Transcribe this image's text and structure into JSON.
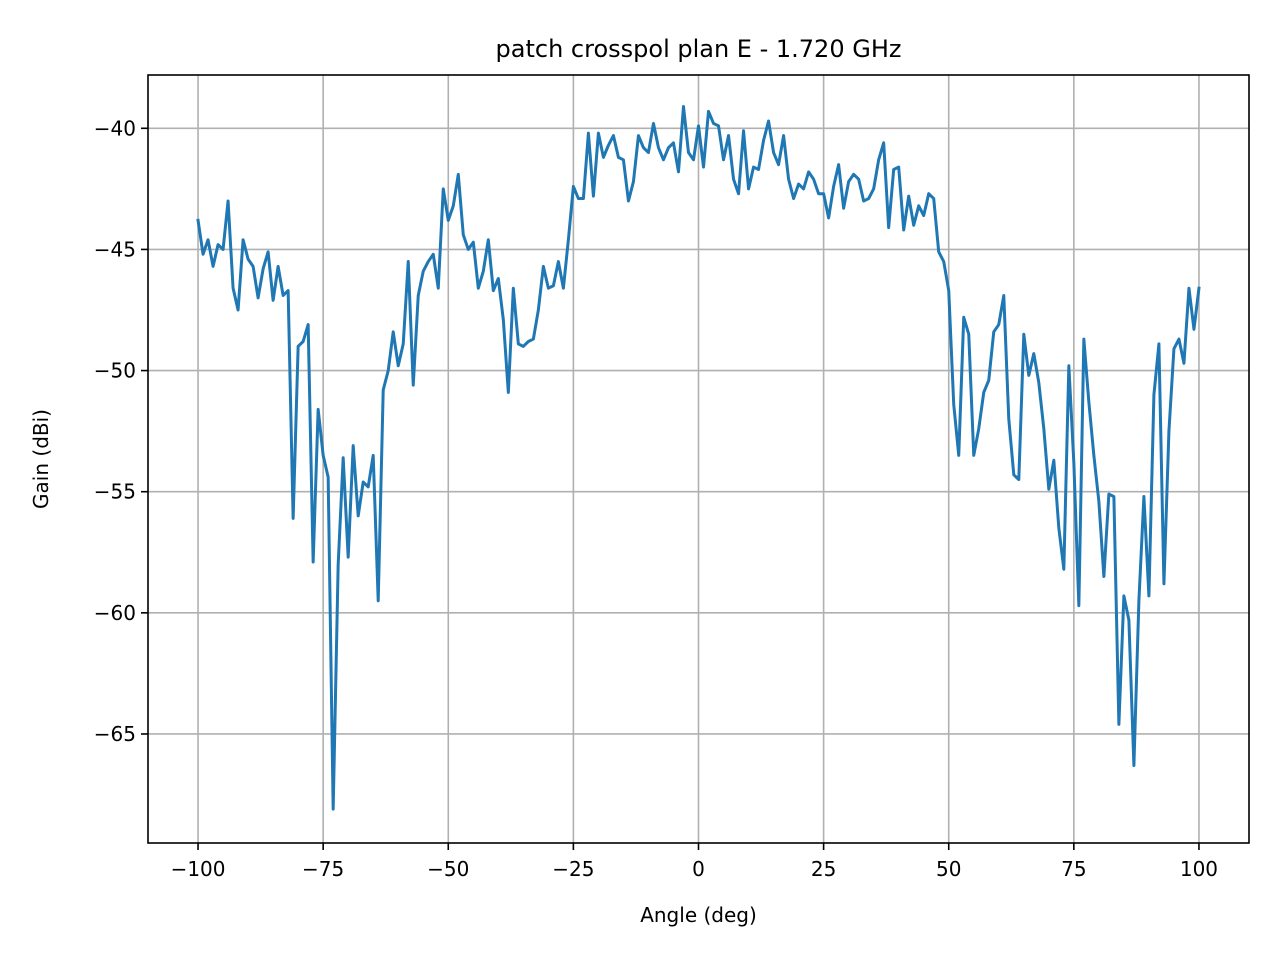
{
  "chart_data": {
    "type": "line",
    "title": "patch crosspol plan E - 1.720 GHz",
    "xlabel": "Angle (deg)",
    "ylabel": "Gain (dBi)",
    "xlim": [
      -110,
      110
    ],
    "ylim": [
      -69.5,
      -37.8
    ],
    "xticks": [
      -100,
      -75,
      -50,
      -25,
      0,
      25,
      50,
      75,
      100
    ],
    "yticks": [
      -65,
      -60,
      -55,
      -50,
      -45,
      -40
    ],
    "xtick_labels": [
      "−100",
      "−75",
      "−50",
      "−25",
      "0",
      "25",
      "50",
      "75",
      "100"
    ],
    "ytick_labels": [
      "−65",
      "−60",
      "−55",
      "−50",
      "−45",
      "−40"
    ],
    "grid": true,
    "line_color": "#1f77b4",
    "series": [
      {
        "x": [
          -100,
          -99,
          -98,
          -97,
          -96,
          -95,
          -94,
          -93,
          -92,
          -91,
          -90,
          -89,
          -88,
          -87,
          -86,
          -85,
          -84,
          -83,
          -82,
          -81,
          -80,
          -79,
          -78,
          -77,
          -76,
          -75,
          -74,
          -73,
          -72,
          -71,
          -70,
          -69,
          -68,
          -67,
          -66,
          -65,
          -64,
          -63,
          -62,
          -61,
          -60,
          -59,
          -58,
          -57,
          -56,
          -55,
          -54,
          -53,
          -52,
          -51,
          -50,
          -49,
          -48,
          -47,
          -46,
          -45,
          -44,
          -43,
          -42,
          -41,
          -40,
          -39,
          -38,
          -37,
          -36,
          -35,
          -34,
          -33,
          -32,
          -31,
          -30,
          -29,
          -28,
          -27,
          -26,
          -25,
          -24,
          -23,
          -22,
          -21,
          -20,
          -19,
          -18,
          -17,
          -16,
          -15,
          -14,
          -13,
          -12,
          -11,
          -10,
          -9,
          -8,
          -7,
          -6,
          -5,
          -4,
          -3,
          -2,
          -1,
          0,
          1,
          2,
          3,
          4,
          5,
          6,
          7,
          8,
          9,
          10,
          11,
          12,
          13,
          14,
          15,
          16,
          17,
          18,
          19,
          20,
          21,
          22,
          23,
          24,
          25,
          26,
          27,
          28,
          29,
          30,
          31,
          32,
          33,
          34,
          35,
          36,
          37,
          38,
          39,
          40,
          41,
          42,
          43,
          44,
          45,
          46,
          47,
          48,
          49,
          50,
          51,
          52,
          53,
          54,
          55,
          56,
          57,
          58,
          59,
          60,
          61,
          62,
          63,
          64,
          65,
          66,
          67,
          68,
          69,
          70,
          71,
          72,
          73,
          74,
          75,
          76,
          77,
          78,
          79,
          80,
          81,
          82,
          83,
          84,
          85,
          86,
          87,
          88,
          89,
          90,
          91,
          92,
          93,
          94,
          95,
          96,
          97,
          98,
          99,
          100
        ],
        "y": [
          -43.8,
          -45.2,
          -44.6,
          -45.7,
          -44.8,
          -45.0,
          -43.0,
          -46.6,
          -47.5,
          -44.6,
          -45.4,
          -45.7,
          -47.0,
          -45.8,
          -45.1,
          -47.1,
          -45.7,
          -46.9,
          -46.7,
          -56.1,
          -49.0,
          -48.8,
          -48.1,
          -57.9,
          -51.6,
          -53.5,
          -54.4,
          -68.1,
          -58.0,
          -53.6,
          -57.7,
          -53.1,
          -56.0,
          -54.6,
          -54.8,
          -53.5,
          -59.5,
          -50.8,
          -50.0,
          -48.4,
          -49.8,
          -48.9,
          -45.5,
          -50.6,
          -46.9,
          -45.9,
          -45.5,
          -45.2,
          -46.6,
          -42.5,
          -43.8,
          -43.2,
          -41.9,
          -44.4,
          -45.0,
          -44.7,
          -46.6,
          -45.9,
          -44.6,
          -46.7,
          -46.2,
          -47.9,
          -50.9,
          -46.6,
          -48.9,
          -49.0,
          -48.8,
          -48.7,
          -47.5,
          -45.7,
          -46.6,
          -46.5,
          -45.5,
          -46.6,
          -44.6,
          -42.4,
          -42.9,
          -42.9,
          -40.2,
          -42.8,
          -40.2,
          -41.2,
          -40.7,
          -40.3,
          -41.2,
          -41.3,
          -43.0,
          -42.2,
          -40.3,
          -40.8,
          -41.0,
          -39.8,
          -40.8,
          -41.3,
          -40.8,
          -40.6,
          -41.8,
          -39.1,
          -41.0,
          -41.3,
          -39.9,
          -41.6,
          -39.3,
          -39.8,
          -39.9,
          -41.3,
          -40.3,
          -42.1,
          -42.7,
          -40.1,
          -42.5,
          -41.6,
          -41.7,
          -40.5,
          -39.7,
          -41.0,
          -41.5,
          -40.3,
          -42.1,
          -42.9,
          -42.3,
          -42.5,
          -41.8,
          -42.1,
          -42.7,
          -42.7,
          -43.7,
          -42.4,
          -41.5,
          -43.3,
          -42.2,
          -41.9,
          -42.1,
          -43.0,
          -42.9,
          -42.5,
          -41.3,
          -40.6,
          -44.1,
          -41.7,
          -41.6,
          -44.2,
          -42.8,
          -44.0,
          -43.2,
          -43.6,
          -42.7,
          -42.9,
          -45.1,
          -45.5,
          -46.7,
          -51.4,
          -53.5,
          -47.8,
          -48.5,
          -53.5,
          -52.4,
          -50.9,
          -50.4,
          -48.4,
          -48.1,
          -46.9,
          -52.0,
          -54.3,
          -54.5,
          -48.5,
          -50.2,
          -49.3,
          -50.5,
          -52.4,
          -54.9,
          -53.7,
          -56.5,
          -58.2,
          -49.8,
          -53.8,
          -59.7,
          -48.7,
          -51.3,
          -53.5,
          -55.4,
          -58.5,
          -55.1,
          -55.2,
          -64.6,
          -59.3,
          -60.3,
          -66.3,
          -59.5,
          -55.2,
          -59.3,
          -51.0,
          -48.9,
          -58.8,
          -52.5,
          -49.1,
          -48.7,
          -49.7,
          -46.6,
          -48.3,
          -46.6
        ]
      }
    ]
  }
}
